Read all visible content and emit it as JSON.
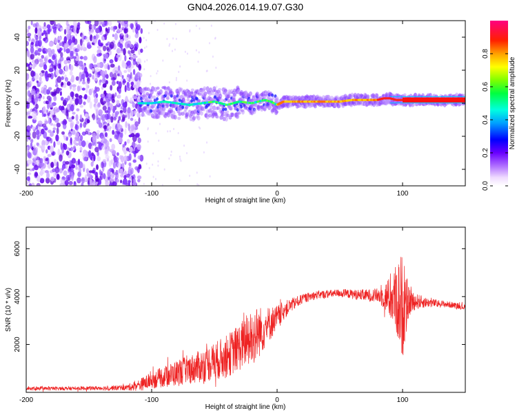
{
  "title": "GN04.2026.014.19.07.G30",
  "chart_data": [
    {
      "type": "heatmap",
      "name": "spectrogram",
      "xlabel": "Height of straight line (km)",
      "ylabel": "Frequency (Hz)",
      "xlim": [
        -200,
        150
      ],
      "ylim": [
        -50,
        50
      ],
      "xticks": [
        -200,
        -100,
        0,
        100
      ],
      "xtick_labels": [
        "-200",
        "-100",
        "0",
        "100"
      ],
      "yticks": [
        -40,
        -20,
        0,
        20,
        40
      ],
      "ytick_labels": [
        "-40",
        "-20",
        "0",
        "20",
        "40"
      ],
      "colorbar": {
        "label": "Normalized spectral amplitude",
        "range": [
          0,
          1
        ],
        "ticks": [
          0.0,
          0.2,
          0.4,
          0.6,
          0.8
        ],
        "tick_labels": [
          "0.0",
          "0.2",
          "0.4",
          "0.6",
          "0.8"
        ]
      },
      "ridge": {
        "x": [
          -110,
          -100,
          -90,
          -80,
          -70,
          -60,
          -50,
          -40,
          -30,
          -20,
          -10,
          -5,
          0,
          5,
          10,
          20,
          30,
          40,
          50,
          60,
          70,
          80,
          85,
          90,
          95,
          100,
          110,
          120,
          130,
          140,
          150
        ],
        "freq": [
          0,
          0,
          1,
          0,
          -1,
          0,
          1,
          -1,
          1,
          0,
          2,
          1,
          -1,
          1,
          1,
          1,
          1,
          1,
          1,
          2,
          2,
          2,
          3,
          3,
          2,
          2,
          2,
          2,
          2,
          2,
          2
        ]
      },
      "noise_region": [
        -200,
        -108
      ]
    },
    {
      "type": "line",
      "name": "snr",
      "xlabel": "Height of straight line (km)",
      "ylabel": "SNR (10 * v/v)",
      "xlim": [
        -200,
        150
      ],
      "ylim": [
        0,
        6900
      ],
      "xticks": [
        -200,
        -100,
        0,
        100
      ],
      "xtick_labels": [
        "-200",
        "-100",
        "0",
        "100"
      ],
      "yticks": [
        2000,
        4000,
        6000
      ],
      "ytick_labels": [
        "2000",
        "4000",
        "6000"
      ],
      "color": "#ee2222",
      "envelope": {
        "x": [
          -200,
          -150,
          -120,
          -110,
          -100,
          -90,
          -80,
          -70,
          -60,
          -50,
          -40,
          -30,
          -25,
          -20,
          -15,
          -10,
          -5,
          0,
          5,
          10,
          20,
          30,
          40,
          50,
          60,
          70,
          80,
          85,
          90,
          95,
          98,
          100,
          105,
          110,
          120,
          130,
          140,
          150
        ],
        "mean": [
          150,
          170,
          200,
          300,
          500,
          650,
          800,
          950,
          1100,
          1300,
          1500,
          1900,
          2100,
          2300,
          2500,
          2700,
          2900,
          3100,
          3400,
          3600,
          3900,
          4050,
          4100,
          4150,
          4100,
          4050,
          4050,
          4000,
          3950,
          3900,
          3700,
          3600,
          3750,
          3800,
          3750,
          3700,
          3650,
          3550
        ],
        "amp": [
          80,
          80,
          120,
          250,
          350,
          450,
          550,
          600,
          700,
          800,
          900,
          1000,
          1100,
          1300,
          1100,
          900,
          700,
          550,
          400,
          300,
          200,
          180,
          170,
          170,
          200,
          250,
          300,
          500,
          900,
          1500,
          2100,
          2200,
          600,
          350,
          200,
          150,
          130,
          120
        ]
      }
    }
  ]
}
